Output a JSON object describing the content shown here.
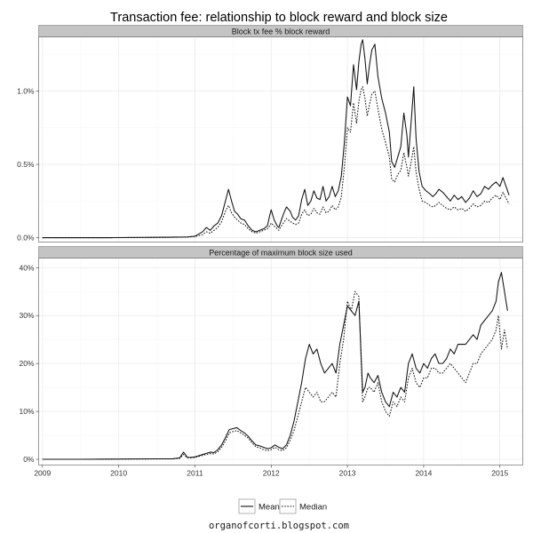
{
  "figure": {
    "title": "Transaction fee: relationship to block reward and block size",
    "footer": "organofcorti.blogspot.com"
  },
  "colors": {
    "background": "#ffffff",
    "strip": "#c4c4c4",
    "panel_border": "#7f7f7f",
    "grid_major": "#ebebeb",
    "grid_minor": "#f5f5f5",
    "line": "#111111"
  },
  "legend": {
    "placement": "bottom",
    "entries": [
      {
        "name": "Mean",
        "style": "solid"
      },
      {
        "name": "Median",
        "style": "dotted"
      }
    ]
  },
  "chart_data": [
    {
      "type": "line",
      "title": "Block tx fee % block reward",
      "xlabel": "",
      "ylabel": "",
      "xlim": [
        2008.95,
        2015.3
      ],
      "ylim": [
        -0.0003,
        0.0137
      ],
      "x_ticks": [
        2009,
        2010,
        2011,
        2012,
        2013,
        2014,
        2015
      ],
      "x_tick_labels": [
        "2009",
        "2010",
        "2011",
        "2012",
        "2013",
        "2014",
        "2015"
      ],
      "show_x_tick_labels": false,
      "y_ticks": [
        0,
        0.005,
        0.01
      ],
      "y_tick_labels": [
        "0.0%",
        "0.5%",
        "1.0%"
      ],
      "grid": true,
      "series": [
        {
          "name": "Mean",
          "style": "solid",
          "x": [
            2009.0,
            2009.5,
            2009.9,
            2010.3,
            2010.6,
            2010.9,
            2011.0,
            2011.1,
            2011.15,
            2011.2,
            2011.25,
            2011.3,
            2011.35,
            2011.4,
            2011.44,
            2011.48,
            2011.52,
            2011.56,
            2011.6,
            2011.65,
            2011.7,
            2011.75,
            2011.8,
            2011.85,
            2011.9,
            2011.95,
            2011.98,
            2012.0,
            2012.04,
            2012.08,
            2012.1,
            2012.12,
            2012.16,
            2012.2,
            2012.25,
            2012.28,
            2012.32,
            2012.36,
            2012.4,
            2012.44,
            2012.48,
            2012.52,
            2012.56,
            2012.6,
            2012.64,
            2012.68,
            2012.72,
            2012.76,
            2012.8,
            2012.84,
            2012.88,
            2012.92,
            2012.96,
            2013.0,
            2013.04,
            2013.08,
            2013.12,
            2013.15,
            2013.18,
            2013.2,
            2013.23,
            2013.26,
            2013.29,
            2013.32,
            2013.36,
            2013.4,
            2013.45,
            2013.5,
            2013.55,
            2013.58,
            2013.62,
            2013.66,
            2013.7,
            2013.74,
            2013.78,
            2013.8,
            2013.83,
            2013.87,
            2013.9,
            2013.94,
            2013.98,
            2014.03,
            2014.08,
            2014.12,
            2014.16,
            2014.2,
            2014.25,
            2014.3,
            2014.35,
            2014.4,
            2014.45,
            2014.5,
            2014.55,
            2014.6,
            2014.65,
            2014.7,
            2014.75,
            2014.8,
            2014.85,
            2014.9,
            2014.95,
            2015.0,
            2015.04,
            2015.08,
            2015.12
          ],
          "y": [
            0.0,
            0.0,
            0.0,
            2e-05,
            3e-05,
            5e-05,
            0.0001,
            0.0004,
            0.0007,
            0.0005,
            0.0008,
            0.001,
            0.0015,
            0.0025,
            0.0033,
            0.0025,
            0.0018,
            0.0016,
            0.0013,
            0.0012,
            0.0008,
            0.0005,
            0.0004,
            0.0005,
            0.0006,
            0.0008,
            0.0015,
            0.0019,
            0.0012,
            0.0008,
            0.0007,
            0.001,
            0.0016,
            0.0021,
            0.0018,
            0.0014,
            0.0012,
            0.0015,
            0.0026,
            0.0033,
            0.0022,
            0.0025,
            0.0032,
            0.0027,
            0.0026,
            0.0035,
            0.0025,
            0.0028,
            0.0035,
            0.0028,
            0.0032,
            0.0042,
            0.0065,
            0.0096,
            0.009,
            0.0118,
            0.0101,
            0.012,
            0.0132,
            0.0135,
            0.0122,
            0.0105,
            0.0118,
            0.0128,
            0.0132,
            0.011,
            0.0095,
            0.0085,
            0.0072,
            0.0052,
            0.0048,
            0.0055,
            0.0062,
            0.0085,
            0.007,
            0.0055,
            0.0075,
            0.0103,
            0.0068,
            0.0045,
            0.0035,
            0.0032,
            0.003,
            0.0028,
            0.003,
            0.0033,
            0.0031,
            0.0028,
            0.0025,
            0.0029,
            0.0026,
            0.0028,
            0.0024,
            0.0027,
            0.0032,
            0.0028,
            0.003,
            0.0035,
            0.0033,
            0.0036,
            0.0038,
            0.0035,
            0.0041,
            0.0035,
            0.0029
          ]
        },
        {
          "name": "Median",
          "style": "dotted",
          "x": [
            2009.0,
            2009.5,
            2009.9,
            2010.3,
            2010.6,
            2010.9,
            2011.0,
            2011.1,
            2011.15,
            2011.2,
            2011.25,
            2011.3,
            2011.35,
            2011.4,
            2011.44,
            2011.48,
            2011.52,
            2011.56,
            2011.6,
            2011.65,
            2011.7,
            2011.75,
            2011.8,
            2011.85,
            2011.9,
            2011.95,
            2011.98,
            2012.0,
            2012.04,
            2012.08,
            2012.1,
            2012.12,
            2012.16,
            2012.2,
            2012.25,
            2012.28,
            2012.32,
            2012.36,
            2012.4,
            2012.44,
            2012.48,
            2012.52,
            2012.56,
            2012.6,
            2012.64,
            2012.68,
            2012.72,
            2012.76,
            2012.8,
            2012.84,
            2012.88,
            2012.92,
            2012.96,
            2013.0,
            2013.04,
            2013.08,
            2013.12,
            2013.15,
            2013.18,
            2013.2,
            2013.23,
            2013.26,
            2013.29,
            2013.32,
            2013.36,
            2013.4,
            2013.45,
            2013.5,
            2013.55,
            2013.58,
            2013.62,
            2013.66,
            2013.7,
            2013.74,
            2013.78,
            2013.8,
            2013.83,
            2013.87,
            2013.9,
            2013.94,
            2013.98,
            2014.03,
            2014.08,
            2014.12,
            2014.16,
            2014.2,
            2014.25,
            2014.3,
            2014.35,
            2014.4,
            2014.45,
            2014.5,
            2014.55,
            2014.6,
            2014.65,
            2014.7,
            2014.75,
            2014.8,
            2014.85,
            2014.9,
            2014.95,
            2015.0,
            2015.04,
            2015.08,
            2015.12
          ],
          "y": [
            0.0,
            0.0,
            0.0,
            1e-05,
            2e-05,
            4e-05,
            8e-05,
            0.0002,
            0.0004,
            0.0003,
            0.0005,
            0.0007,
            0.0011,
            0.0018,
            0.0022,
            0.0017,
            0.0014,
            0.0012,
            0.001,
            0.0009,
            0.0006,
            0.0004,
            0.0003,
            0.0004,
            0.0005,
            0.0006,
            0.0008,
            0.001,
            0.0008,
            0.0006,
            0.0005,
            0.0007,
            0.001,
            0.0013,
            0.0011,
            0.001,
            0.0009,
            0.001,
            0.0016,
            0.0019,
            0.0015,
            0.0016,
            0.002,
            0.0017,
            0.0016,
            0.0021,
            0.0017,
            0.0018,
            0.0022,
            0.0019,
            0.0021,
            0.0028,
            0.0048,
            0.0075,
            0.0072,
            0.0092,
            0.0078,
            0.0093,
            0.0101,
            0.0103,
            0.0095,
            0.0083,
            0.0091,
            0.0098,
            0.01,
            0.0088,
            0.0074,
            0.0065,
            0.0055,
            0.004,
            0.0038,
            0.0043,
            0.0046,
            0.0058,
            0.0048,
            0.0042,
            0.005,
            0.0062,
            0.0045,
            0.0033,
            0.0025,
            0.0024,
            0.0022,
            0.0021,
            0.0022,
            0.0024,
            0.0022,
            0.002,
            0.0019,
            0.0021,
            0.0019,
            0.002,
            0.0018,
            0.002,
            0.0023,
            0.0021,
            0.0022,
            0.0025,
            0.0024,
            0.0027,
            0.0029,
            0.0026,
            0.0031,
            0.0027,
            0.0023
          ]
        }
      ]
    },
    {
      "type": "line",
      "title": "Percentage of maximum block size used",
      "xlabel": "",
      "ylabel": "",
      "xlim": [
        2008.95,
        2015.3
      ],
      "ylim": [
        -0.012,
        0.42
      ],
      "x_ticks": [
        2009,
        2010,
        2011,
        2012,
        2013,
        2014,
        2015
      ],
      "x_tick_labels": [
        "2009",
        "2010",
        "2011",
        "2012",
        "2013",
        "2014",
        "2015"
      ],
      "show_x_tick_labels": true,
      "y_ticks": [
        0,
        0.1,
        0.2,
        0.3,
        0.4
      ],
      "y_tick_labels": [
        "0%",
        "10%",
        "20%",
        "30%",
        "40%"
      ],
      "grid": true,
      "series": [
        {
          "name": "Mean",
          "style": "solid",
          "x": [
            2009.0,
            2009.5,
            2010.0,
            2010.5,
            2010.7,
            2010.8,
            2010.85,
            2010.9,
            2010.95,
            2011.0,
            2011.1,
            2011.2,
            2011.25,
            2011.3,
            2011.35,
            2011.4,
            2011.45,
            2011.5,
            2011.55,
            2011.6,
            2011.65,
            2011.7,
            2011.75,
            2011.8,
            2011.85,
            2011.9,
            2011.95,
            2012.0,
            2012.05,
            2012.1,
            2012.15,
            2012.2,
            2012.25,
            2012.3,
            2012.35,
            2012.4,
            2012.45,
            2012.5,
            2012.55,
            2012.6,
            2012.65,
            2012.7,
            2012.75,
            2012.8,
            2012.85,
            2012.9,
            2012.95,
            2013.0,
            2013.05,
            2013.1,
            2013.15,
            2013.2,
            2013.23,
            2013.27,
            2013.3,
            2013.35,
            2013.4,
            2013.45,
            2013.5,
            2013.55,
            2013.6,
            2013.65,
            2013.7,
            2013.75,
            2013.8,
            2013.85,
            2013.9,
            2013.95,
            2014.0,
            2014.05,
            2014.1,
            2014.15,
            2014.2,
            2014.25,
            2014.3,
            2014.35,
            2014.4,
            2014.45,
            2014.5,
            2014.55,
            2014.6,
            2014.65,
            2014.7,
            2014.75,
            2014.8,
            2014.85,
            2014.9,
            2014.95,
            2014.98,
            2015.02,
            2015.06,
            2015.1
          ],
          "y": [
            0.0,
            0.0,
            0.0005,
            0.001,
            0.001,
            0.003,
            0.015,
            0.004,
            0.004,
            0.005,
            0.01,
            0.015,
            0.014,
            0.02,
            0.03,
            0.045,
            0.062,
            0.064,
            0.066,
            0.06,
            0.055,
            0.048,
            0.038,
            0.03,
            0.028,
            0.025,
            0.022,
            0.024,
            0.03,
            0.025,
            0.022,
            0.03,
            0.05,
            0.08,
            0.12,
            0.16,
            0.21,
            0.24,
            0.22,
            0.23,
            0.2,
            0.18,
            0.19,
            0.2,
            0.18,
            0.24,
            0.28,
            0.32,
            0.31,
            0.3,
            0.33,
            0.14,
            0.15,
            0.18,
            0.17,
            0.16,
            0.175,
            0.14,
            0.12,
            0.11,
            0.14,
            0.13,
            0.15,
            0.14,
            0.2,
            0.22,
            0.19,
            0.18,
            0.2,
            0.19,
            0.21,
            0.22,
            0.2,
            0.2,
            0.21,
            0.23,
            0.22,
            0.24,
            0.24,
            0.24,
            0.25,
            0.26,
            0.25,
            0.28,
            0.29,
            0.3,
            0.31,
            0.33,
            0.37,
            0.39,
            0.35,
            0.31
          ]
        },
        {
          "name": "Median",
          "style": "dotted",
          "x": [
            2009.0,
            2009.5,
            2010.0,
            2010.5,
            2010.7,
            2010.8,
            2010.85,
            2010.9,
            2010.95,
            2011.0,
            2011.1,
            2011.2,
            2011.25,
            2011.3,
            2011.35,
            2011.4,
            2011.45,
            2011.5,
            2011.55,
            2011.6,
            2011.65,
            2011.7,
            2011.75,
            2011.8,
            2011.85,
            2011.9,
            2011.95,
            2012.0,
            2012.05,
            2012.1,
            2012.15,
            2012.2,
            2012.25,
            2012.3,
            2012.35,
            2012.4,
            2012.45,
            2012.5,
            2012.55,
            2012.6,
            2012.65,
            2012.7,
            2012.75,
            2012.8,
            2012.85,
            2012.9,
            2012.95,
            2013.0,
            2013.05,
            2013.1,
            2013.15,
            2013.2,
            2013.23,
            2013.27,
            2013.3,
            2013.35,
            2013.4,
            2013.45,
            2013.5,
            2013.55,
            2013.6,
            2013.65,
            2013.7,
            2013.75,
            2013.8,
            2013.85,
            2013.9,
            2013.95,
            2014.0,
            2014.05,
            2014.1,
            2014.15,
            2014.2,
            2014.25,
            2014.3,
            2014.35,
            2014.4,
            2014.45,
            2014.5,
            2014.55,
            2014.6,
            2014.65,
            2014.7,
            2014.75,
            2014.8,
            2014.85,
            2014.9,
            2014.95,
            2014.98,
            2015.02,
            2015.06,
            2015.1
          ],
          "y": [
            0.0,
            0.0,
            0.0003,
            0.0008,
            0.0008,
            0.002,
            0.01,
            0.003,
            0.003,
            0.004,
            0.008,
            0.012,
            0.011,
            0.016,
            0.025,
            0.038,
            0.055,
            0.058,
            0.06,
            0.055,
            0.05,
            0.044,
            0.034,
            0.026,
            0.024,
            0.02,
            0.018,
            0.02,
            0.025,
            0.02,
            0.018,
            0.024,
            0.04,
            0.06,
            0.09,
            0.12,
            0.15,
            0.14,
            0.13,
            0.14,
            0.12,
            0.12,
            0.13,
            0.14,
            0.13,
            0.2,
            0.25,
            0.33,
            0.31,
            0.35,
            0.34,
            0.12,
            0.13,
            0.15,
            0.15,
            0.14,
            0.16,
            0.12,
            0.1,
            0.09,
            0.12,
            0.11,
            0.13,
            0.12,
            0.17,
            0.19,
            0.16,
            0.15,
            0.17,
            0.17,
            0.19,
            0.19,
            0.18,
            0.18,
            0.19,
            0.2,
            0.19,
            0.18,
            0.17,
            0.16,
            0.18,
            0.2,
            0.2,
            0.22,
            0.23,
            0.24,
            0.25,
            0.27,
            0.3,
            0.23,
            0.27,
            0.23
          ]
        }
      ]
    }
  ]
}
